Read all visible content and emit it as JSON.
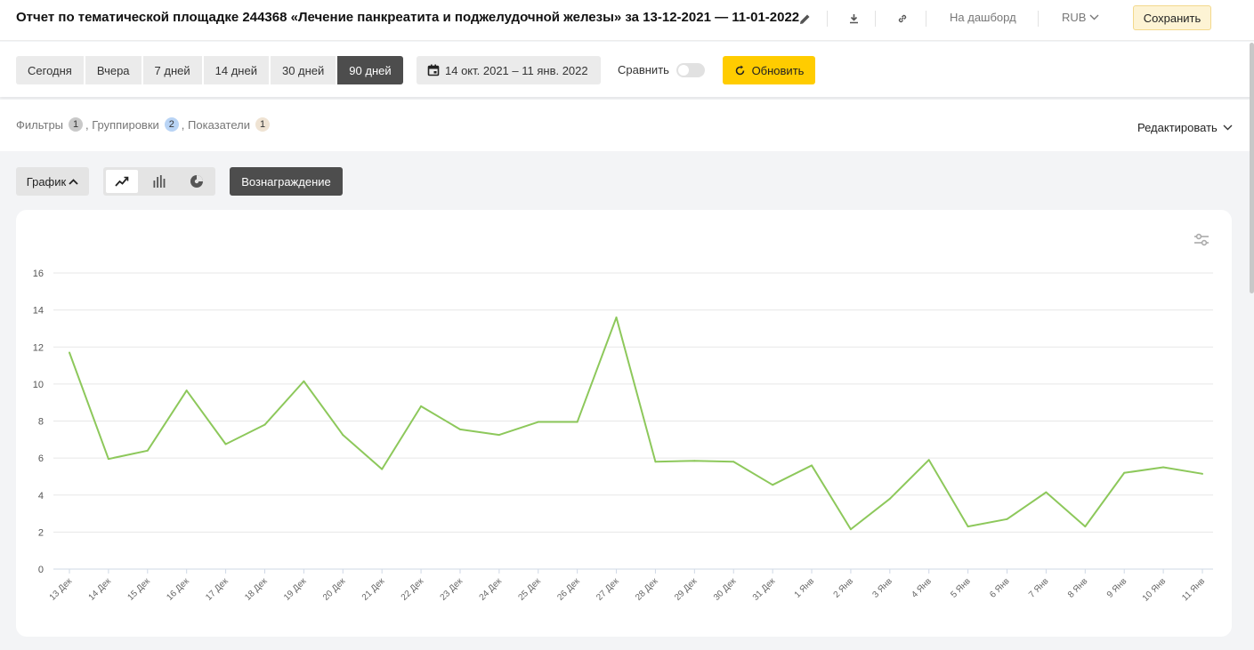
{
  "header": {
    "title": "Отчет по тематической площадке 244368 «Лечение панкреатита и поджелудочной железы» за 13-12-2021 — 11-01-2022",
    "to_dashboard": "На дашборд",
    "currency": "RUB",
    "save": "Сохранить"
  },
  "toolbar": {
    "periods": [
      "Сегодня",
      "Вчера",
      "7 дней",
      "14 дней",
      "30 дней",
      "90 дней"
    ],
    "active_period": "90 дней",
    "date_range": "14 окт. 2021 – 11 янв. 2022",
    "compare": "Сравнить",
    "refresh": "Обновить"
  },
  "filters": {
    "filters_label": "Фильтры",
    "filters_count": "1",
    "groupings_label": ", Группировки",
    "groupings_count": "2",
    "metrics_label": ", Показатели",
    "metrics_count": "1",
    "edit": "Редактировать"
  },
  "view": {
    "chart_button": "График",
    "metric_button": "Вознаграждение"
  },
  "icons": [
    "pencil-icon",
    "download-icon",
    "link-icon",
    "chevron-down-icon",
    "calendar-icon",
    "refresh-icon",
    "chevron-up-icon",
    "line-chart-icon",
    "bar-chart-icon",
    "pie-chart-icon",
    "sliders-icon"
  ],
  "colors": {
    "line": "#8dc85b",
    "accent": "#ffcc00",
    "active": "#4d4d4d"
  },
  "chart_data": {
    "type": "line",
    "categories": [
      "13 Дек",
      "14 Дек",
      "15 Дек",
      "16 Дек",
      "17 Дек",
      "18 Дек",
      "19 Дек",
      "20 Дек",
      "21 Дек",
      "22 Дек",
      "23 Дек",
      "24 Дек",
      "25 Дек",
      "26 Дек",
      "27 Дек",
      "28 Дек",
      "29 Дек",
      "30 Дек",
      "31 Дек",
      "1 Янв",
      "2 Янв",
      "3 Янв",
      "4 Янв",
      "5 Янв",
      "6 Янв",
      "7 Янв",
      "8 Янв",
      "9 Янв",
      "10 Янв",
      "11 Янв"
    ],
    "values": [
      11.7,
      5.95,
      6.4,
      9.65,
      6.75,
      7.8,
      10.15,
      7.25,
      5.4,
      8.8,
      7.55,
      7.25,
      7.95,
      7.95,
      13.6,
      5.8,
      5.85,
      5.8,
      4.55,
      5.6,
      2.15,
      3.8,
      5.9,
      2.3,
      2.7,
      4.15,
      2.3,
      5.2,
      5.5,
      5.15
    ],
    "yticks": [
      "0",
      "2",
      "4",
      "6",
      "8",
      "10",
      "12",
      "14",
      "16"
    ],
    "ylim": [
      0,
      16
    ],
    "grid": true,
    "legend": "none"
  }
}
